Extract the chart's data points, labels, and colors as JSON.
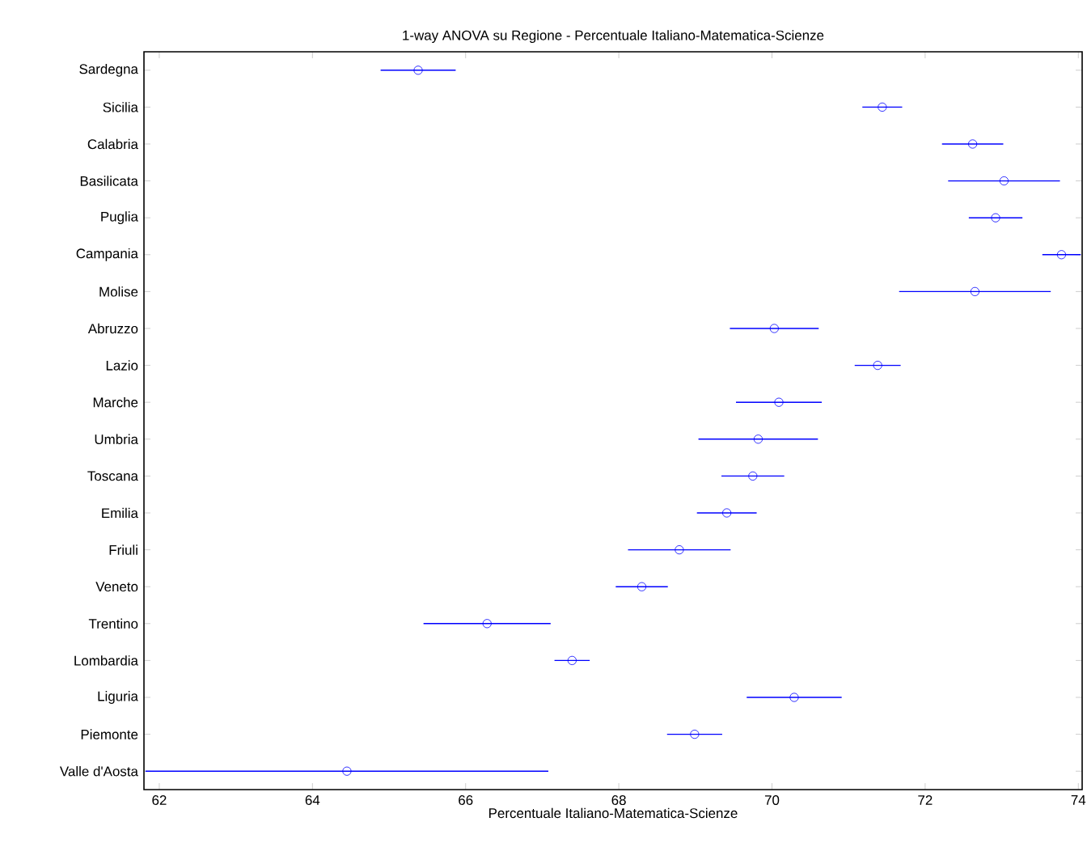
{
  "chart_data": {
    "type": "scatter",
    "orientation": "horizontal",
    "title": "1-way ANOVA su Regione - Percentuale Italiano-Matematica-Scienze",
    "xlabel": "Percentuale Italiano-Matematica-Scienze",
    "categories": [
      "Sardegna",
      "Sicilia",
      "Calabria",
      "Basilicata",
      "Puglia",
      "Campania",
      "Molise",
      "Abruzzo",
      "Lazio",
      "Marche",
      "Umbria",
      "Toscana",
      "Emilia",
      "Friuli",
      "Veneto",
      "Trentino",
      "Lombardia",
      "Liguria",
      "Piemonte",
      "Valle d'Aosta"
    ],
    "values": [
      65.38,
      71.44,
      72.62,
      73.03,
      72.92,
      73.78,
      72.65,
      70.03,
      71.38,
      70.09,
      69.82,
      69.75,
      69.41,
      68.79,
      68.3,
      66.28,
      67.39,
      70.29,
      68.99,
      64.45
    ],
    "errors": [
      0.49,
      0.26,
      0.4,
      0.73,
      0.35,
      0.25,
      0.99,
      0.58,
      0.3,
      0.56,
      0.78,
      0.41,
      0.39,
      0.67,
      0.34,
      0.83,
      0.23,
      0.62,
      0.36,
      2.63
    ],
    "color": "#0000ff",
    "marker": "circle",
    "line_style": "solid",
    "xlim": [
      61.8,
      74.05
    ],
    "xticks": [
      62,
      64,
      66,
      68,
      70,
      72,
      74
    ]
  }
}
